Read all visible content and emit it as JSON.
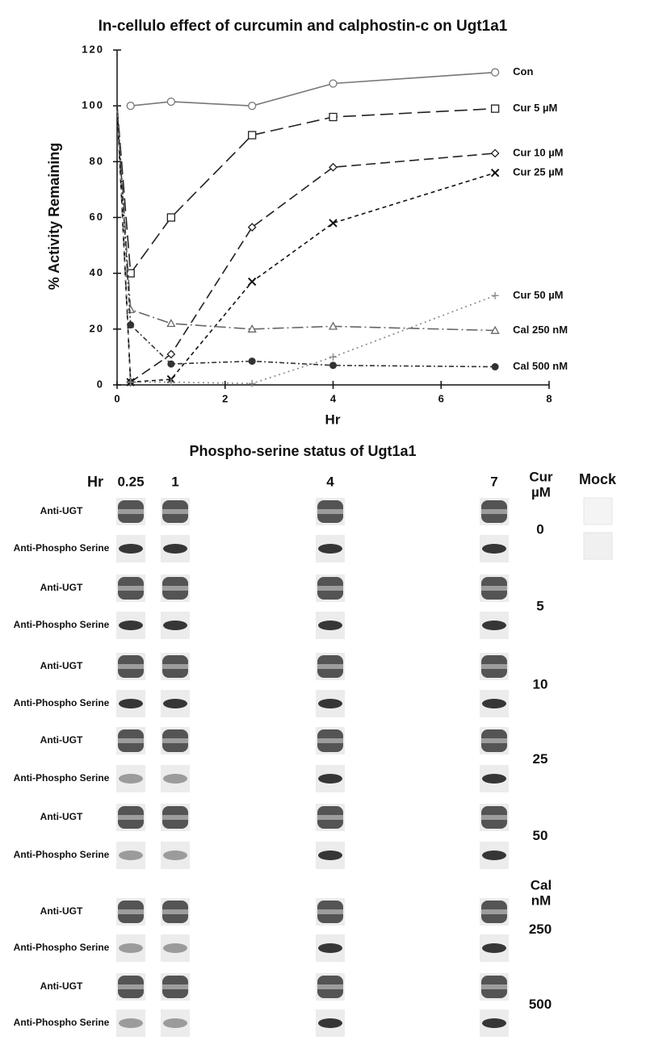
{
  "chart_data": {
    "type": "line",
    "title": "In-cellulo effect of curcumin and calphostin-c on Ugt1a1",
    "x_label": "Hr",
    "y_label": "% Activity  Remaining",
    "x": [
      0,
      0.25,
      1,
      2.5,
      4,
      7
    ],
    "xlim": [
      0,
      8
    ],
    "xticks": [
      0,
      2,
      4,
      6,
      8
    ],
    "ylim": [
      0,
      120
    ],
    "yticks": [
      0,
      20,
      40,
      60,
      80,
      100,
      120
    ],
    "series": [
      {
        "name": "Con",
        "color": "#777777",
        "marker": "circle",
        "dash": "none",
        "values": [
          null,
          100,
          101.5,
          100,
          108,
          112
        ]
      },
      {
        "name": "Cur 5 µM",
        "color": "#222222",
        "marker": "square",
        "dash": "16 7",
        "values": [
          100,
          40,
          60,
          89.5,
          96,
          99
        ]
      },
      {
        "name": "Cur 10 µM",
        "color": "#222222",
        "marker": "diamond",
        "dash": "12 6",
        "values": [
          100,
          1,
          11,
          56.5,
          78,
          83
        ]
      },
      {
        "name": "Cur 25 µM",
        "color": "#111111",
        "marker": "x",
        "dash": "5 4",
        "values": [
          100,
          1,
          2,
          37,
          58,
          76
        ]
      },
      {
        "name": "Cur 50 µM",
        "color": "#888888",
        "marker": "plus",
        "dash": "2 4",
        "values": [
          100,
          1,
          1,
          0.5,
          10,
          32
        ]
      },
      {
        "name": "Cal 250 nM",
        "color": "#666666",
        "marker": "triangle",
        "dash": "14 4 2 4",
        "values": [
          100,
          27,
          22,
          20,
          21,
          19.5
        ]
      },
      {
        "name": "Cal 500 nM",
        "color": "#333333",
        "marker": "dot",
        "dash": "6 3 2 3",
        "values": [
          100,
          21.5,
          7.5,
          8.5,
          7,
          6.5
        ]
      }
    ]
  },
  "blots": {
    "title": "Phospho-serine status of Ugt1a1",
    "hr_label": "Hr",
    "columns": [
      "0.25",
      "1",
      "4",
      "7"
    ],
    "mock_label": "Mock",
    "sections": [
      {
        "header": [
          "Cur",
          "µM"
        ],
        "groups": [
          {
            "level": "0",
            "rows": [
              "Anti-UGT",
              "Anti-Phospho Serine"
            ]
          },
          {
            "level": "5",
            "rows": [
              "Anti-UGT",
              "Anti-Phospho Serine"
            ]
          },
          {
            "level": "10",
            "rows": [
              "Anti-UGT",
              "Anti-Phospho Serine"
            ]
          },
          {
            "level": "25",
            "rows": [
              "Anti-UGT",
              "Anti-Phospho Serine"
            ]
          },
          {
            "level": "50",
            "rows": [
              "Anti-UGT",
              "Anti-Phospho Serine"
            ]
          }
        ]
      },
      {
        "header": [
          "Cal",
          "nM"
        ],
        "groups": [
          {
            "level": "250",
            "rows": [
              "Anti-UGT",
              "Anti-Phospho Serine"
            ]
          },
          {
            "level": "500",
            "rows": [
              "Anti-UGT",
              "Anti-Phospho Serine"
            ]
          }
        ]
      }
    ]
  }
}
